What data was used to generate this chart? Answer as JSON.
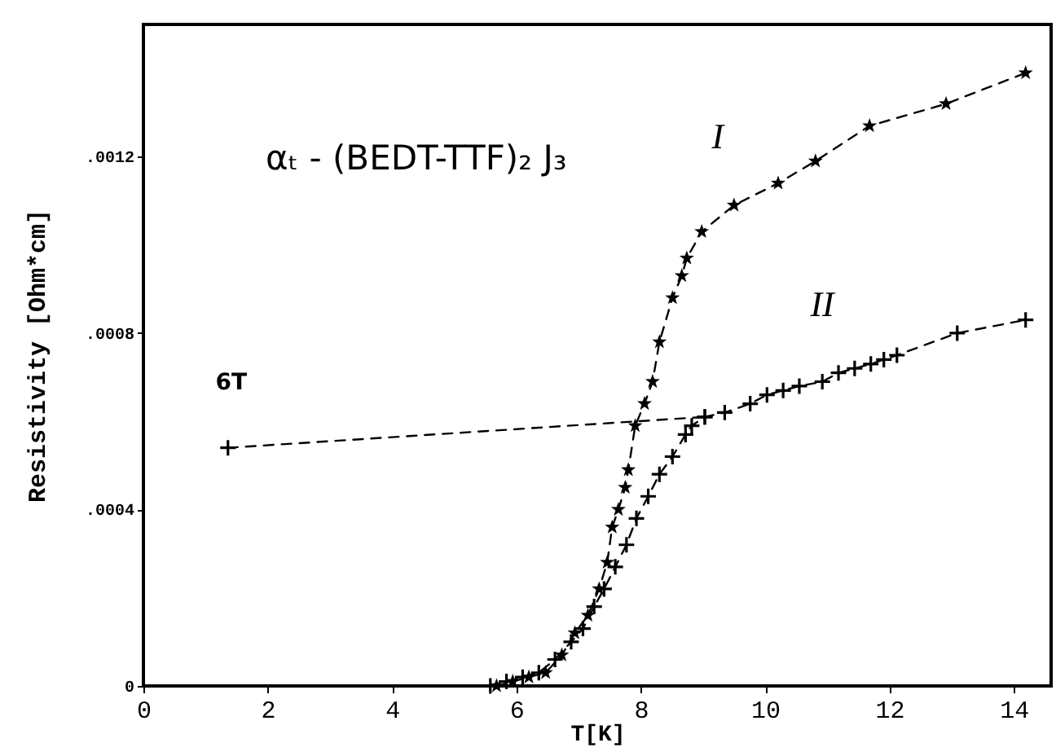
{
  "chart_data": {
    "type": "line",
    "xlabel": "T[K]",
    "ylabel": "Resistivity [Ohm*cm]",
    "xlim": [
      0,
      14.6
    ],
    "xticks": [
      0,
      2,
      4,
      6,
      8,
      10,
      12,
      14
    ],
    "ylim": [
      0,
      0.0015
    ],
    "yticks": [
      {
        "value": 0,
        "label": "0"
      },
      {
        "value": 0.0004,
        "label": ".0004"
      },
      {
        "value": 0.0008,
        "label": ".0008"
      },
      {
        "value": 0.0012,
        "label": ".0012"
      }
    ],
    "line_style": "dashed",
    "series": [
      {
        "name": "I",
        "color": "#000000",
        "marker": "star",
        "x": [
          5.68,
          5.94,
          6.2,
          6.47,
          6.73,
          6.94,
          7.15,
          7.33,
          7.46,
          7.54,
          7.64,
          7.75,
          7.8,
          7.91,
          8.06,
          8.19,
          8.3,
          8.51,
          8.66,
          8.74,
          8.98,
          9.5,
          10.21,
          10.81,
          11.68,
          12.91,
          14.19
        ],
        "values": [
          0,
          1e-05,
          2e-05,
          3e-05,
          7e-05,
          0.00012,
          0.00016,
          0.00022,
          0.00028,
          0.00036,
          0.0004,
          0.00045,
          0.00049,
          0.00059,
          0.00064,
          0.00069,
          0.00078,
          0.00088,
          0.00093,
          0.00097,
          0.00103,
          0.00109,
          0.00114,
          0.00119,
          0.00127,
          0.00132,
          0.00139
        ]
      },
      {
        "name": "II",
        "color": "#000000",
        "marker": "cross",
        "x": [
          5.58,
          5.84,
          6.1,
          6.36,
          6.62,
          6.88,
          7.07,
          7.25,
          7.41,
          7.59,
          7.77,
          7.93,
          8.12,
          8.3,
          8.51,
          8.72,
          8.82,
          9.03,
          9.35,
          9.76,
          10.03,
          10.29,
          10.55,
          10.92,
          11.18,
          11.44,
          11.7,
          11.91,
          12.12,
          13.09,
          14.19
        ],
        "values": [
          0,
          1e-05,
          2e-05,
          3e-05,
          6e-05,
          0.0001,
          0.00013,
          0.00018,
          0.00022,
          0.00027,
          0.00032,
          0.00038,
          0.00043,
          0.00048,
          0.00052,
          0.00057,
          0.00059,
          0.00061,
          0.00062,
          0.00064,
          0.00066,
          0.00067,
          0.00068,
          0.00069,
          0.00071,
          0.00072,
          0.00073,
          0.00074,
          0.00075,
          0.0008,
          0.00083
        ]
      },
      {
        "name": "6T",
        "color": "#000000",
        "marker": "cross",
        "x": [
          1.36,
          9.03
        ],
        "values": [
          0.00054,
          0.00061
        ]
      }
    ],
    "annotations": [
      "αₜ - (BEDT-TTF)₂ J₃"
    ]
  }
}
